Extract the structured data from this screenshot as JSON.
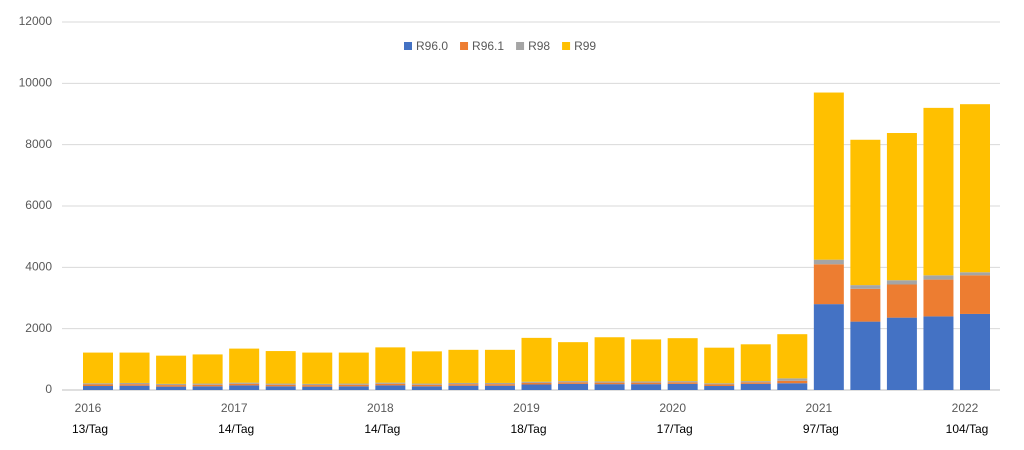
{
  "chart_data": {
    "type": "stacked-bar",
    "categories": [
      "2016",
      null,
      null,
      null,
      "2017",
      null,
      null,
      null,
      "2018",
      null,
      null,
      null,
      "2019",
      null,
      null,
      null,
      "2020",
      null,
      null,
      null,
      "2021",
      null,
      null,
      null,
      "2022"
    ],
    "category_notes": [
      "13/Tag",
      null,
      null,
      null,
      "14/Tag",
      null,
      null,
      null,
      "14/Tag",
      null,
      null,
      null,
      "18/Tag",
      null,
      null,
      null,
      "17/Tag",
      null,
      null,
      null,
      "97/Tag",
      null,
      null,
      null,
      "104/Tag"
    ],
    "series": [
      {
        "name": "R96.0",
        "color": "#4472c4",
        "values": [
          130,
          140,
          110,
          120,
          150,
          120,
          110,
          120,
          150,
          120,
          140,
          140,
          180,
          200,
          190,
          190,
          200,
          130,
          200,
          220,
          2800,
          2230,
          2360,
          2400,
          2480
        ]
      },
      {
        "name": "R96.1",
        "color": "#ed7d31",
        "values": [
          50,
          50,
          50,
          50,
          50,
          50,
          50,
          50,
          50,
          50,
          50,
          50,
          50,
          50,
          50,
          50,
          50,
          50,
          50,
          80,
          1300,
          1070,
          1080,
          1200,
          1260
        ]
      },
      {
        "name": "R98",
        "color": "#a5a5a5",
        "values": [
          40,
          40,
          40,
          40,
          40,
          40,
          40,
          40,
          40,
          40,
          40,
          40,
          40,
          40,
          40,
          40,
          40,
          40,
          40,
          80,
          150,
          120,
          140,
          140,
          100
        ]
      },
      {
        "name": "R99",
        "color": "#ffc000",
        "values": [
          1000,
          990,
          920,
          950,
          1110,
          1060,
          1020,
          1010,
          1150,
          1050,
          1080,
          1080,
          1430,
          1270,
          1440,
          1370,
          1400,
          1160,
          1200,
          1440,
          5450,
          4740,
          4800,
          5460,
          5480
        ]
      }
    ],
    "ylim": [
      0,
      12000
    ],
    "yticks": [
      0,
      2000,
      4000,
      6000,
      8000,
      10000,
      12000
    ],
    "grid": true,
    "legend": "top"
  }
}
